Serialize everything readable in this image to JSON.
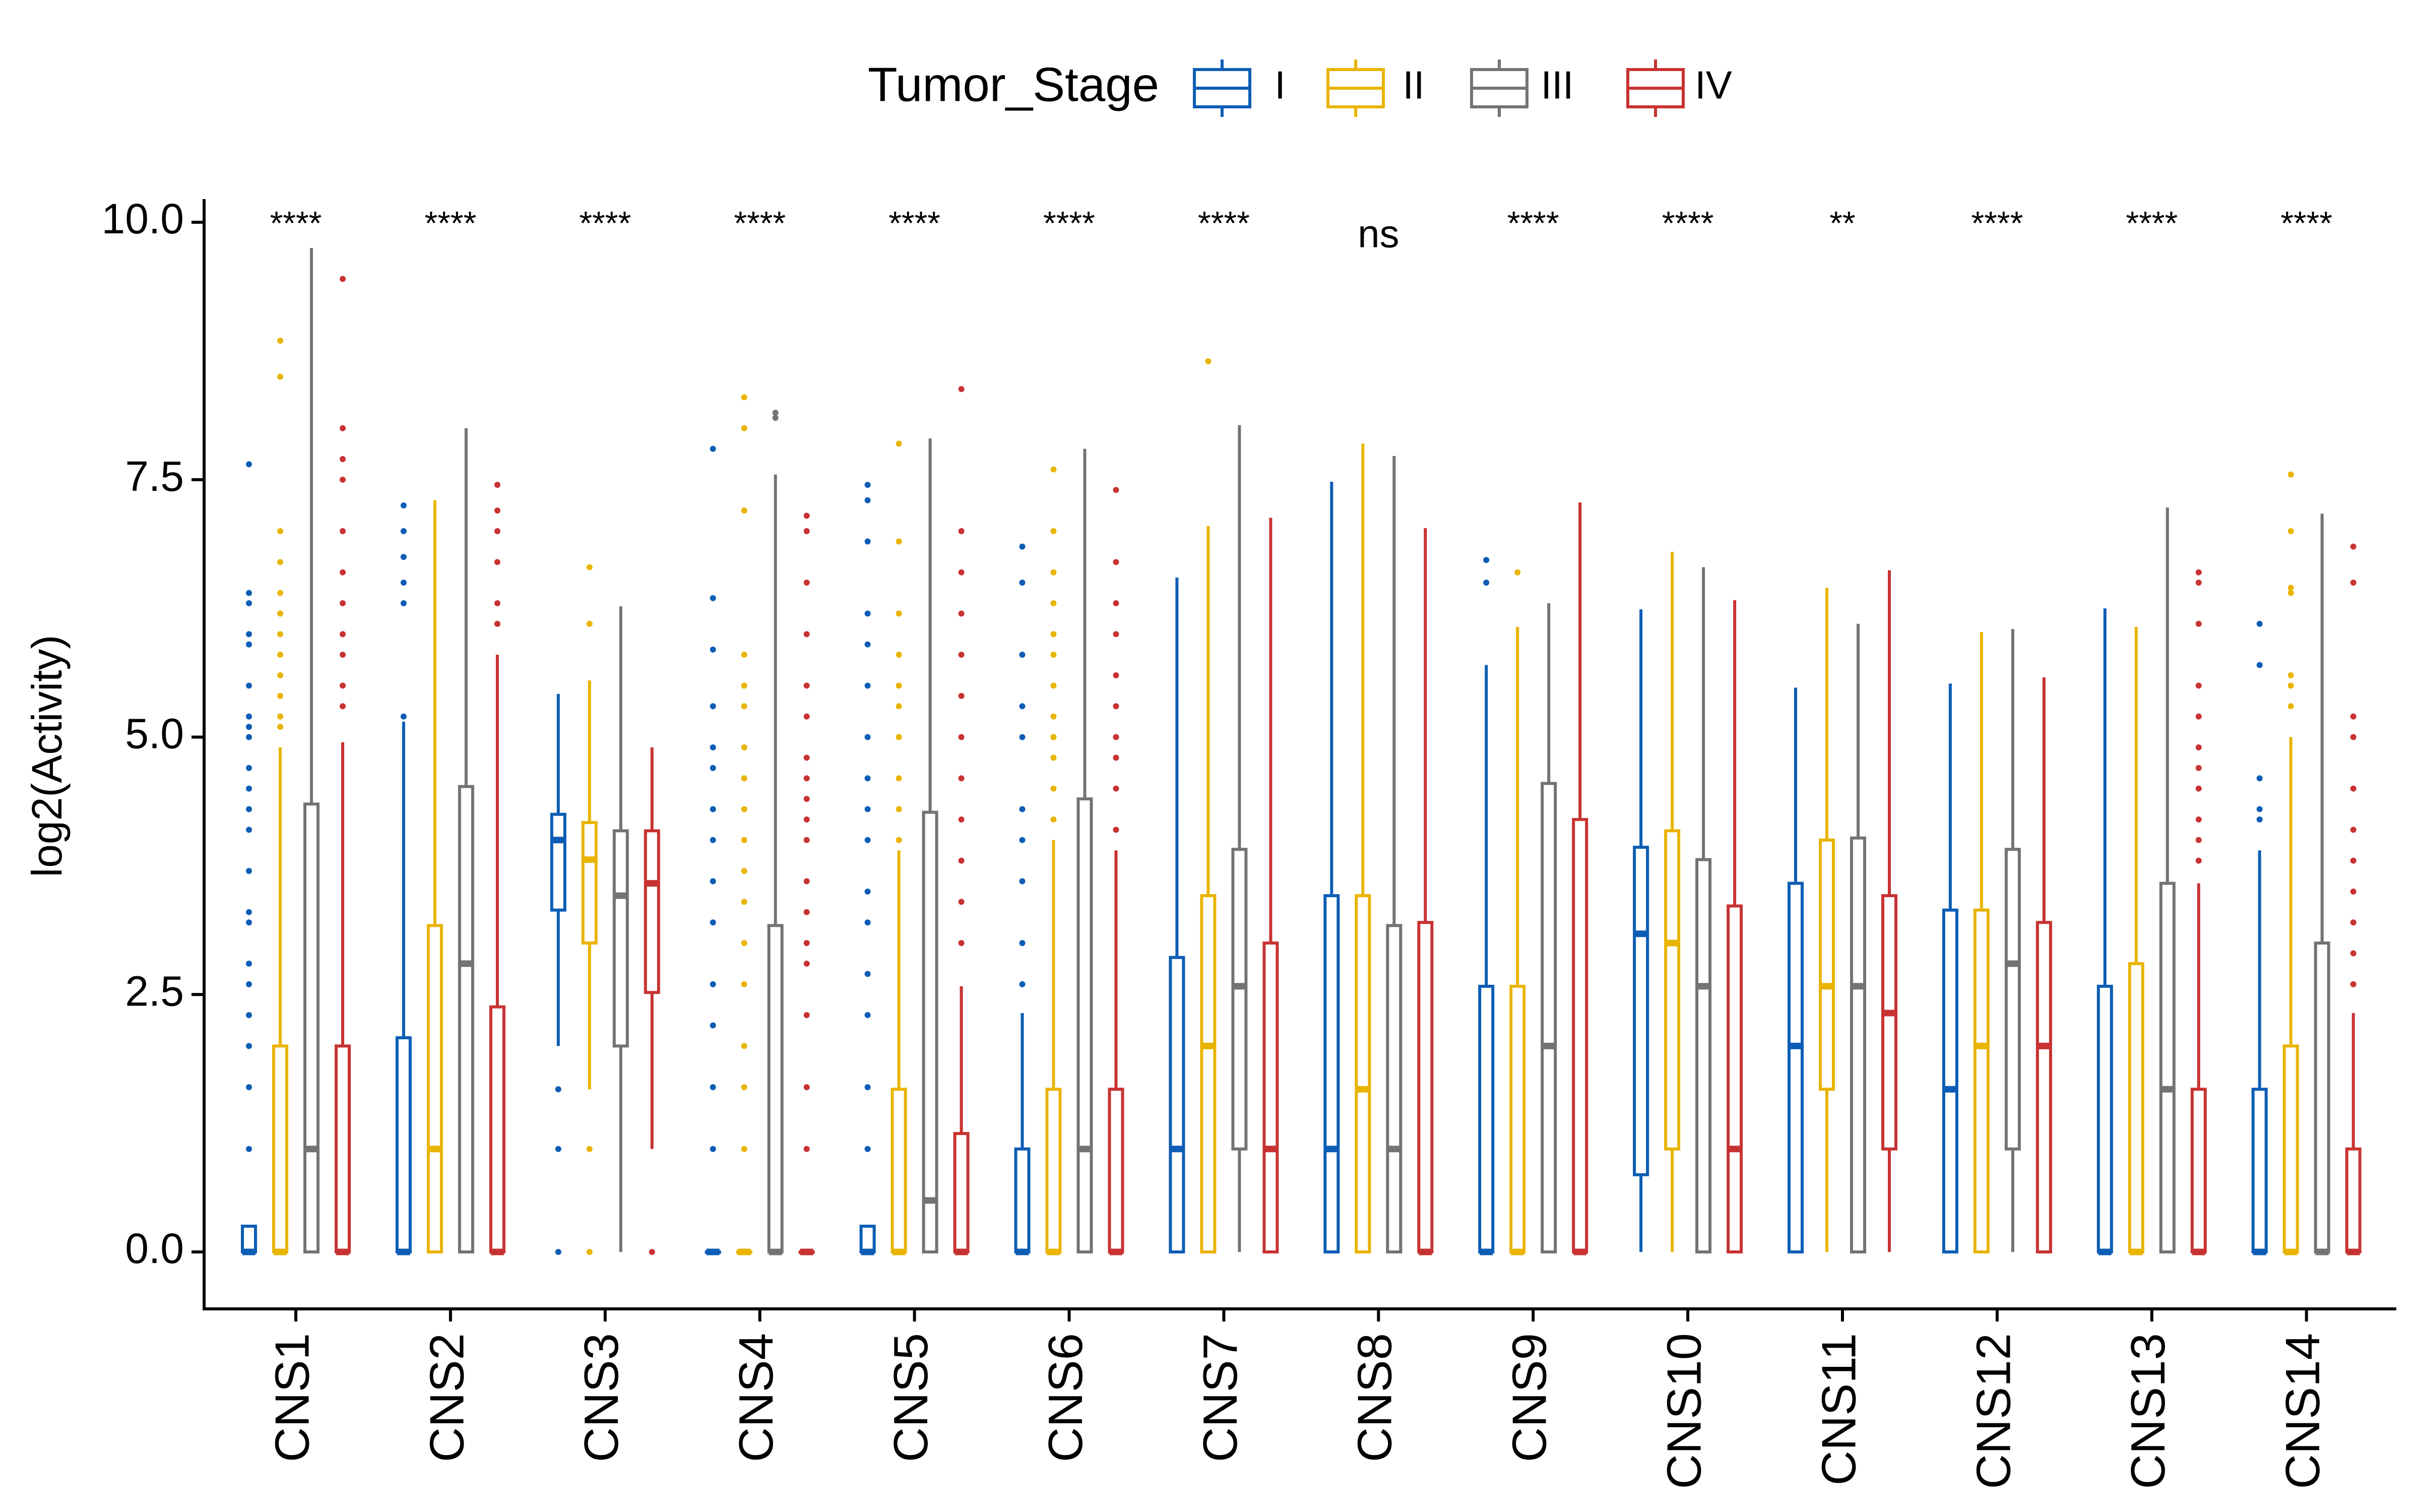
{
  "chart_data": {
    "type": "boxplot",
    "title": "",
    "xlabel": "",
    "ylabel": "log2(Activity)",
    "ylim": [
      -0.5,
      10.3
    ],
    "yticks": [
      0.0,
      2.5,
      5.0,
      7.5,
      10.0
    ],
    "ytick_labels": [
      "0.0",
      "2.5",
      "5.0",
      "7.5",
      "10.0"
    ],
    "grid": false,
    "legend": {
      "title": "Tumor_Stage",
      "position": "top",
      "entries": [
        "I",
        "II",
        "III",
        "IV"
      ]
    },
    "series_colors": {
      "I": "#0C5DB5",
      "II": "#E9B400",
      "III": "#737373",
      "IV": "#C83232"
    },
    "categories": [
      "CNS1",
      "CNS2",
      "CNS3",
      "CNS4",
      "CNS5",
      "CNS6",
      "CNS7",
      "CNS8",
      "CNS9",
      "CNS10",
      "CNS11",
      "CNS12",
      "CNS13",
      "CNS14"
    ],
    "significance": [
      "****",
      "****",
      "****",
      "****",
      "****",
      "****",
      "****",
      "ns",
      "****",
      "****",
      "**",
      "****",
      "****",
      "****"
    ],
    "groups": [
      {
        "category": "CNS1",
        "boxes": [
          {
            "stage": "I",
            "wmin": 0,
            "q1": 0,
            "median": 0,
            "q3": 0.25,
            "wmax": 0.25,
            "outliers": [
              7.65,
              6.4,
              6.3,
              6.0,
              5.9,
              5.5,
              5.2,
              5.1,
              5.0,
              4.7,
              4.5,
              4.3,
              4.1,
              3.7,
              3.3,
              3.2,
              2.8,
              2.6,
              2.3,
              2.0,
              1.6,
              1.0
            ]
          },
          {
            "stage": "II",
            "wmin": 0,
            "q1": 0,
            "median": 0,
            "q3": 2.0,
            "wmax": 4.9,
            "outliers": [
              5.1,
              5.2,
              5.4,
              5.6,
              5.8,
              6.0,
              6.2,
              6.4,
              6.7,
              7.0,
              8.5,
              8.85
            ]
          },
          {
            "stage": "III",
            "wmin": 0,
            "q1": 0,
            "median": 1.0,
            "q3": 4.35,
            "wmax": 9.75,
            "outliers": []
          },
          {
            "stage": "IV",
            "wmin": 0,
            "q1": 0,
            "median": 0,
            "q3": 2.0,
            "wmax": 4.95,
            "outliers": [
              5.3,
              5.5,
              5.8,
              6.0,
              6.3,
              6.6,
              7.0,
              7.5,
              7.7,
              8.0,
              9.45
            ]
          }
        ]
      },
      {
        "category": "CNS2",
        "boxes": [
          {
            "stage": "I",
            "wmin": 0,
            "q1": 0,
            "median": 0,
            "q3": 2.08,
            "wmax": 5.15,
            "outliers": [
              5.2,
              6.3,
              6.5,
              6.75,
              7.0,
              7.25
            ]
          },
          {
            "stage": "II",
            "wmin": 0,
            "q1": 0,
            "median": 1.0,
            "q3": 3.17,
            "wmax": 7.3,
            "outliers": []
          },
          {
            "stage": "III",
            "wmin": 0,
            "q1": 0,
            "median": 2.8,
            "q3": 4.52,
            "wmax": 8.0,
            "outliers": []
          },
          {
            "stage": "IV",
            "wmin": 0,
            "q1": 0,
            "median": 0,
            "q3": 2.38,
            "wmax": 5.8,
            "outliers": [
              6.1,
              6.3,
              6.7,
              7.0,
              7.2,
              7.45
            ]
          }
        ]
      },
      {
        "category": "CNS3",
        "boxes": [
          {
            "stage": "I",
            "wmin": 2.0,
            "q1": 3.32,
            "median": 4.0,
            "q3": 4.25,
            "wmax": 5.42,
            "outliers": [
              1.58,
              1.0,
              0
            ]
          },
          {
            "stage": "II",
            "wmin": 1.58,
            "q1": 3.0,
            "median": 3.81,
            "q3": 4.17,
            "wmax": 5.55,
            "outliers": [
              6.1,
              6.65,
              1.0,
              0
            ]
          },
          {
            "stage": "III",
            "wmin": 0,
            "q1": 2.0,
            "median": 3.46,
            "q3": 4.09,
            "wmax": 6.27,
            "outliers": []
          },
          {
            "stage": "IV",
            "wmin": 1.0,
            "q1": 2.52,
            "median": 3.58,
            "q3": 4.09,
            "wmax": 4.9,
            "outliers": [
              0
            ]
          }
        ]
      },
      {
        "category": "CNS4",
        "boxes": [
          {
            "stage": "I",
            "wmin": 0,
            "q1": 0,
            "median": 0,
            "q3": 0,
            "wmax": 0,
            "outliers": [
              1.0,
              1.6,
              2.2,
              2.6,
              3.2,
              3.6,
              4.0,
              4.3,
              4.7,
              4.9,
              5.3,
              5.85,
              6.35,
              7.8
            ]
          },
          {
            "stage": "II",
            "wmin": 0,
            "q1": 0,
            "median": 0,
            "q3": 0,
            "wmax": 0,
            "outliers": [
              1.0,
              1.6,
              2.0,
              2.6,
              3.0,
              3.4,
              3.7,
              4.0,
              4.3,
              4.6,
              4.9,
              5.3,
              5.5,
              5.8,
              7.2,
              8.0,
              8.3
            ]
          },
          {
            "stage": "III",
            "wmin": 0,
            "q1": 0,
            "median": 0,
            "q3": 3.17,
            "wmax": 7.55,
            "outliers": [
              8.1,
              8.15
            ]
          },
          {
            "stage": "IV",
            "wmin": 0,
            "q1": 0,
            "median": 0,
            "q3": 0,
            "wmax": 0,
            "outliers": [
              1.0,
              1.6,
              2.3,
              2.8,
              3.0,
              3.3,
              3.6,
              4.0,
              4.2,
              4.4,
              4.6,
              4.8,
              5.2,
              5.5,
              6.0,
              6.5,
              7.0,
              7.15
            ]
          }
        ]
      },
      {
        "category": "CNS5",
        "boxes": [
          {
            "stage": "I",
            "wmin": 0,
            "q1": 0,
            "median": 0,
            "q3": 0.25,
            "wmax": 0.25,
            "outliers": [
              1.0,
              1.6,
              2.3,
              2.7,
              3.2,
              3.5,
              4.0,
              4.3,
              4.6,
              5.0,
              5.5,
              5.9,
              6.2,
              6.9,
              7.3,
              7.45
            ]
          },
          {
            "stage": "II",
            "wmin": 0,
            "q1": 0,
            "median": 0,
            "q3": 1.58,
            "wmax": 3.9,
            "outliers": [
              4.0,
              4.3,
              4.6,
              5.0,
              5.3,
              5.5,
              5.8,
              6.2,
              6.9,
              7.85
            ]
          },
          {
            "stage": "III",
            "wmin": 0,
            "q1": 0,
            "median": 0.5,
            "q3": 4.27,
            "wmax": 7.9,
            "outliers": []
          },
          {
            "stage": "IV",
            "wmin": 0,
            "q1": 0,
            "median": 0,
            "q3": 1.15,
            "wmax": 2.58,
            "outliers": [
              3.0,
              3.4,
              3.8,
              4.2,
              4.6,
              5.0,
              5.4,
              5.8,
              6.2,
              6.6,
              7.0,
              8.38
            ]
          }
        ]
      },
      {
        "category": "CNS6",
        "boxes": [
          {
            "stage": "I",
            "wmin": 0,
            "q1": 0,
            "median": 0,
            "q3": 1.0,
            "wmax": 2.32,
            "outliers": [
              2.6,
              3.0,
              3.6,
              4.0,
              4.3,
              5.0,
              5.3,
              5.8,
              6.5,
              6.85
            ]
          },
          {
            "stage": "II",
            "wmin": 0,
            "q1": 0,
            "median": 0,
            "q3": 1.58,
            "wmax": 4.0,
            "outliers": [
              4.2,
              4.5,
              4.8,
              5.0,
              5.2,
              5.5,
              5.8,
              6.0,
              6.3,
              6.6,
              7.0,
              7.6
            ]
          },
          {
            "stage": "III",
            "wmin": 0,
            "q1": 0,
            "median": 1.0,
            "q3": 4.4,
            "wmax": 7.8,
            "outliers": []
          },
          {
            "stage": "IV",
            "wmin": 0,
            "q1": 0,
            "median": 0,
            "q3": 1.58,
            "wmax": 3.9,
            "outliers": [
              4.1,
              4.5,
              4.8,
              5.0,
              5.3,
              5.6,
              6.0,
              6.3,
              6.7,
              7.4
            ]
          }
        ]
      },
      {
        "category": "CNS7",
        "boxes": [
          {
            "stage": "I",
            "wmin": 0,
            "q1": 0,
            "median": 1.0,
            "q3": 2.86,
            "wmax": 6.55,
            "outliers": []
          },
          {
            "stage": "II",
            "wmin": 0,
            "q1": 0,
            "median": 2.0,
            "q3": 3.46,
            "wmax": 7.05,
            "outliers": [
              8.65
            ]
          },
          {
            "stage": "III",
            "wmin": 0,
            "q1": 1.0,
            "median": 2.58,
            "q3": 3.91,
            "wmax": 8.03,
            "outliers": []
          },
          {
            "stage": "IV",
            "wmin": 0,
            "q1": 0,
            "median": 1.0,
            "q3": 3.0,
            "wmax": 7.13,
            "outliers": []
          }
        ]
      },
      {
        "category": "CNS8",
        "boxes": [
          {
            "stage": "I",
            "wmin": 0,
            "q1": 0,
            "median": 1.0,
            "q3": 3.46,
            "wmax": 7.48,
            "outliers": []
          },
          {
            "stage": "II",
            "wmin": 0,
            "q1": 0,
            "median": 1.58,
            "q3": 3.46,
            "wmax": 7.85,
            "outliers": []
          },
          {
            "stage": "III",
            "wmin": 0,
            "q1": 0,
            "median": 1.0,
            "q3": 3.17,
            "wmax": 7.73,
            "outliers": []
          },
          {
            "stage": "IV",
            "wmin": 0,
            "q1": 0,
            "median": 0,
            "q3": 3.2,
            "wmax": 7.03,
            "outliers": []
          }
        ]
      },
      {
        "category": "CNS9",
        "boxes": [
          {
            "stage": "I",
            "wmin": 0,
            "q1": 0,
            "median": 0,
            "q3": 2.58,
            "wmax": 5.7,
            "outliers": [
              6.5,
              6.72
            ]
          },
          {
            "stage": "II",
            "wmin": 0,
            "q1": 0,
            "median": 0,
            "q3": 2.58,
            "wmax": 6.07,
            "outliers": [
              6.6
            ]
          },
          {
            "stage": "III",
            "wmin": 0,
            "q1": 0,
            "median": 2.0,
            "q3": 4.55,
            "wmax": 6.3,
            "outliers": []
          },
          {
            "stage": "IV",
            "wmin": 0,
            "q1": 0,
            "median": 0,
            "q3": 4.2,
            "wmax": 7.28,
            "outliers": []
          }
        ]
      },
      {
        "category": "CNS10",
        "boxes": [
          {
            "stage": "I",
            "wmin": 0,
            "q1": 0.75,
            "median": 3.09,
            "q3": 3.93,
            "wmax": 6.24,
            "outliers": []
          },
          {
            "stage": "II",
            "wmin": 0,
            "q1": 1.0,
            "median": 3.0,
            "q3": 4.09,
            "wmax": 6.8,
            "outliers": []
          },
          {
            "stage": "III",
            "wmin": 0,
            "q1": 0,
            "median": 2.58,
            "q3": 3.81,
            "wmax": 6.65,
            "outliers": []
          },
          {
            "stage": "IV",
            "wmin": 0,
            "q1": 0,
            "median": 1.0,
            "q3": 3.36,
            "wmax": 6.33,
            "outliers": []
          }
        ]
      },
      {
        "category": "CNS11",
        "boxes": [
          {
            "stage": "I",
            "wmin": 0,
            "q1": 0,
            "median": 2.0,
            "q3": 3.58,
            "wmax": 5.48,
            "outliers": []
          },
          {
            "stage": "II",
            "wmin": 0,
            "q1": 1.58,
            "median": 2.58,
            "q3": 4.0,
            "wmax": 6.45,
            "outliers": []
          },
          {
            "stage": "III",
            "wmin": 0,
            "q1": 0,
            "median": 2.58,
            "q3": 4.02,
            "wmax": 6.1,
            "outliers": []
          },
          {
            "stage": "IV",
            "wmin": 0,
            "q1": 1.0,
            "median": 2.32,
            "q3": 3.46,
            "wmax": 6.62,
            "outliers": []
          }
        ]
      },
      {
        "category": "CNS12",
        "boxes": [
          {
            "stage": "I",
            "wmin": 0,
            "q1": 0,
            "median": 1.58,
            "q3": 3.32,
            "wmax": 5.52,
            "outliers": []
          },
          {
            "stage": "II",
            "wmin": 0,
            "q1": 0,
            "median": 2.0,
            "q3": 3.32,
            "wmax": 6.02,
            "outliers": []
          },
          {
            "stage": "III",
            "wmin": 0,
            "q1": 1.0,
            "median": 2.8,
            "q3": 3.91,
            "wmax": 6.05,
            "outliers": []
          },
          {
            "stage": "IV",
            "wmin": 0,
            "q1": 0,
            "median": 2.0,
            "q3": 3.2,
            "wmax": 5.58,
            "outliers": []
          }
        ]
      },
      {
        "category": "CNS13",
        "boxes": [
          {
            "stage": "I",
            "wmin": 0,
            "q1": 0,
            "median": 0,
            "q3": 2.58,
            "wmax": 6.25,
            "outliers": []
          },
          {
            "stage": "II",
            "wmin": 0,
            "q1": 0,
            "median": 0,
            "q3": 2.8,
            "wmax": 6.07,
            "outliers": []
          },
          {
            "stage": "III",
            "wmin": 0,
            "q1": 0,
            "median": 1.58,
            "q3": 3.58,
            "wmax": 7.23,
            "outliers": []
          },
          {
            "stage": "IV",
            "wmin": 0,
            "q1": 0,
            "median": 0,
            "q3": 1.58,
            "wmax": 3.58,
            "outliers": [
              3.8,
              4.0,
              4.2,
              4.5,
              4.7,
              4.9,
              5.2,
              5.5,
              6.1,
              6.5,
              6.6
            ]
          }
        ]
      },
      {
        "category": "CNS14",
        "boxes": [
          {
            "stage": "I",
            "wmin": 0,
            "q1": 0,
            "median": 0,
            "q3": 1.58,
            "wmax": 3.9,
            "outliers": [
              4.2,
              4.3,
              4.6,
              5.7,
              6.1
            ]
          },
          {
            "stage": "II",
            "wmin": 0,
            "q1": 0,
            "median": 0,
            "q3": 2.0,
            "wmax": 5.0,
            "outliers": [
              5.3,
              5.5,
              5.6,
              6.4,
              6.45,
              7.0,
              7.55
            ]
          },
          {
            "stage": "III",
            "wmin": 0,
            "q1": 0,
            "median": 0,
            "q3": 3.0,
            "wmax": 7.17,
            "outliers": []
          },
          {
            "stage": "IV",
            "wmin": 0,
            "q1": 0,
            "median": 0,
            "q3": 1.0,
            "wmax": 2.32,
            "outliers": [
              2.6,
              2.9,
              3.2,
              3.5,
              3.8,
              4.1,
              4.5,
              5.0,
              5.2,
              6.5,
              6.85
            ]
          }
        ]
      }
    ]
  }
}
